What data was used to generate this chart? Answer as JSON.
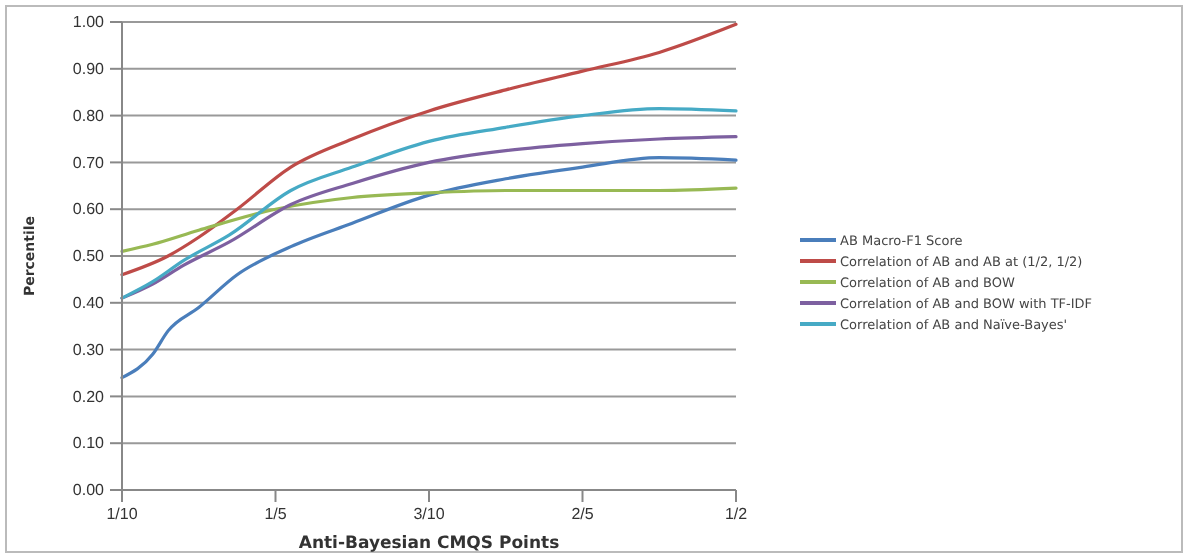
{
  "chart_data": {
    "type": "line",
    "xlabel": "Anti-Bayesian CMQS Points",
    "ylabel": "Percentile",
    "xlim": [
      0.1,
      0.5
    ],
    "xticks": [
      {
        "value": 0.1,
        "label": "1/10"
      },
      {
        "value": 0.2,
        "label": "1/5"
      },
      {
        "value": 0.3,
        "label": "3/10"
      },
      {
        "value": 0.4,
        "label": "2/5"
      },
      {
        "value": 0.5,
        "label": "1/2"
      }
    ],
    "ylim": [
      0,
      1
    ],
    "yticks": [
      {
        "value": 0,
        "label": "0.00"
      },
      {
        "value": 0.1,
        "label": "0.10"
      },
      {
        "value": 0.2,
        "label": "0.20"
      },
      {
        "value": 0.3,
        "label": "0.30"
      },
      {
        "value": 0.4,
        "label": "0.40"
      },
      {
        "value": 0.5,
        "label": "0.50"
      },
      {
        "value": 0.6,
        "label": "0.60"
      },
      {
        "value": 0.7,
        "label": "0.70"
      },
      {
        "value": 0.8,
        "label": "0.80"
      },
      {
        "value": 0.9,
        "label": "0.90"
      },
      {
        "value": 1,
        "label": "1.00"
      }
    ],
    "grid": "y",
    "legend": "right",
    "marker": "none",
    "line_style": "solid",
    "series": [
      {
        "name": "AB Macro-F1 Score",
        "color": "#4a7ebb",
        "x": [
          0.1,
          0.12,
          0.13,
          0.15,
          0.175,
          0.21,
          0.25,
          0.3,
          0.35,
          0.4,
          0.45,
          0.5
        ],
        "values": [
          0.24,
          0.29,
          0.34,
          0.39,
          0.46,
          0.52,
          0.57,
          0.63,
          0.665,
          0.69,
          0.71,
          0.705
        ]
      },
      {
        "name": "Correlation of AB and AB at (1/2, 1/2)",
        "color": "#be4b48",
        "x": [
          0.1,
          0.13,
          0.15,
          0.175,
          0.21,
          0.25,
          0.3,
          0.35,
          0.4,
          0.45,
          0.5
        ],
        "values": [
          0.46,
          0.5,
          0.54,
          0.6,
          0.69,
          0.75,
          0.81,
          0.855,
          0.895,
          0.935,
          0.995
        ]
      },
      {
        "name": "Correlation of AB and BOW",
        "color": "#98b954",
        "x": [
          0.1,
          0.12,
          0.15,
          0.2,
          0.25,
          0.3,
          0.35,
          0.45,
          0.5
        ],
        "values": [
          0.51,
          0.525,
          0.555,
          0.6,
          0.625,
          0.635,
          0.64,
          0.64,
          0.645
        ]
      },
      {
        "name": "Correlation of AB and BOW with TF-IDF",
        "color": "#7d60a0",
        "x": [
          0.1,
          0.12,
          0.14,
          0.17,
          0.21,
          0.25,
          0.3,
          0.35,
          0.4,
          0.45,
          0.5
        ],
        "values": [
          0.41,
          0.44,
          0.48,
          0.53,
          0.61,
          0.655,
          0.7,
          0.725,
          0.74,
          0.75,
          0.755
        ]
      },
      {
        "name": "Correlation of AB and Naïve-Bayes'",
        "color": "#46aac5",
        "x": [
          0.1,
          0.12,
          0.14,
          0.17,
          0.21,
          0.25,
          0.3,
          0.35,
          0.4,
          0.45,
          0.5
        ],
        "values": [
          0.41,
          0.445,
          0.49,
          0.545,
          0.64,
          0.69,
          0.745,
          0.775,
          0.8,
          0.815,
          0.81
        ]
      }
    ]
  }
}
